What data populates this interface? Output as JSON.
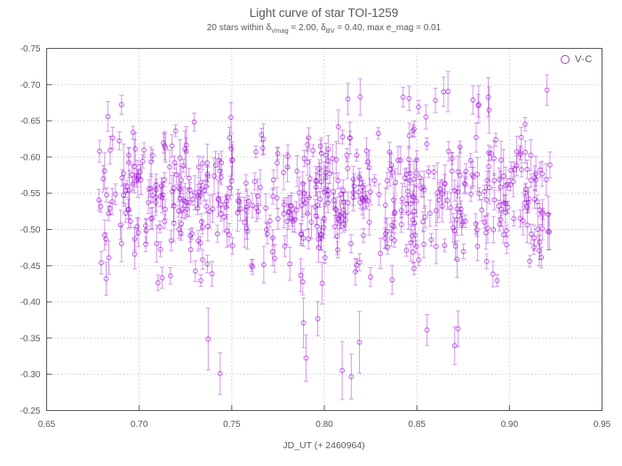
{
  "colors": {
    "accent": "#9400d3",
    "frame": "#5a5a5a",
    "grid": "#c9c9c9",
    "text": "#595959",
    "background": "#ffffff"
  },
  "header": {
    "title": "Light curve of star TOI-1259"
  },
  "subtitle": {
    "p1": "20 stars within δ",
    "s1": "Vmag",
    "p2": " = 2.00, δ",
    "s2": "BV",
    "p3": " = 0.40, max e_mag = 0.01"
  },
  "legend": {
    "label": "V-C"
  },
  "chart_data": {
    "type": "scatter",
    "title": "Light curve of star TOI-1259",
    "subtitle": "20 stars within δVmag = 2.00, δBV = 0.40, max e_mag = 0.01",
    "xlabel": "JD_UT (+ 2460964)",
    "ylabel": "",
    "xlim": [
      0.65,
      0.95
    ],
    "ylim": [
      -0.75,
      -0.25
    ],
    "y_axis_inverted_magnitude": true,
    "grid": "dotted",
    "x_ticks": [
      0.65,
      0.7,
      0.75,
      0.8,
      0.85,
      0.9,
      0.95
    ],
    "x_tick_labels": [
      "0.65",
      "0.70",
      "0.75",
      "0.80",
      "0.85",
      "0.90",
      "0.95"
    ],
    "y_ticks": [
      -0.75,
      -0.7,
      -0.65,
      -0.6,
      -0.55,
      -0.5,
      -0.45,
      -0.4,
      -0.35,
      -0.3,
      -0.25
    ],
    "y_tick_labels": [
      "-0.75",
      "-0.70",
      "-0.65",
      "-0.60",
      "-0.55",
      "-0.50",
      "-0.45",
      "-0.40",
      "-0.35",
      "-0.30",
      "-0.25"
    ],
    "series": [
      {
        "name": "V-C",
        "marker": "open-circle",
        "error_bars": "vertical-with-caps",
        "color": "#9400d3"
      }
    ],
    "legend": {
      "label": "V-C",
      "position": "top-right-inside"
    },
    "data_x_range": [
      0.678,
      0.922
    ],
    "data_y_center": -0.545,
    "data_y_scatter_sigma": 0.048,
    "generator": {
      "seed": 1259731,
      "n": 540,
      "x_min": 0.678,
      "x_max": 0.922,
      "mean_knots": [
        [
          0.678,
          -0.545
        ],
        [
          0.71,
          -0.552
        ],
        [
          0.745,
          -0.535
        ],
        [
          0.775,
          -0.528
        ],
        [
          0.8,
          -0.545
        ],
        [
          0.835,
          -0.538
        ],
        [
          0.87,
          -0.552
        ],
        [
          0.922,
          -0.55
        ]
      ],
      "sigma": 0.048,
      "reflect_top": -0.705,
      "reflect_bottom": -0.425,
      "err_min": 0.008,
      "err_max": 0.026,
      "big_err_chance": 0.07,
      "big_err_factor": 1.7,
      "outliers_low": {
        "n": 11,
        "x_range": [
          0.735,
          0.875
        ],
        "y_range": [
          -0.385,
          -0.295
        ],
        "err_range": [
          0.02,
          0.045
        ]
      },
      "outliers_high": {
        "n": 7,
        "x_range": [
          0.8,
          0.922
        ],
        "y_range": [
          -0.735,
          -0.675
        ],
        "err_range": [
          0.012,
          0.03
        ]
      }
    }
  }
}
